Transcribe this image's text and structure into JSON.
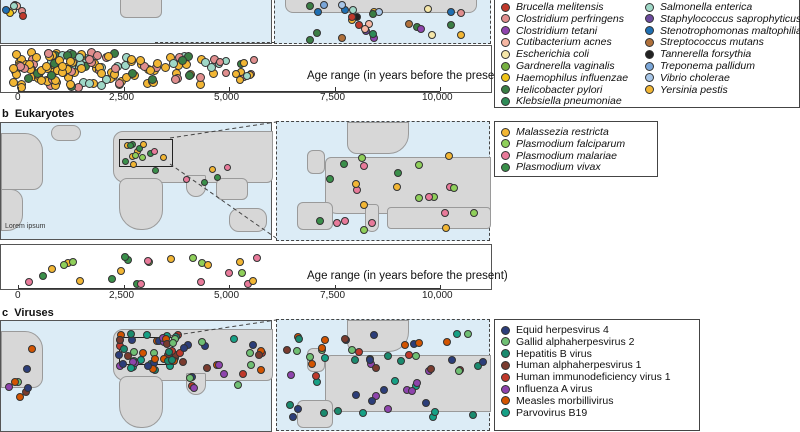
{
  "panels": {
    "a": {
      "age_axis_label": "Age range (in years before the present)",
      "ticks": [
        "0",
        "2,500",
        "5,000",
        "7,500",
        "10,000"
      ],
      "legend_col1": [
        {
          "label": "Brucella melitensis",
          "color": "#c0392b"
        },
        {
          "label": "Clostridium perfringens",
          "color": "#e08e8e"
        },
        {
          "label": "Clostridium tetani",
          "color": "#8e44ad"
        },
        {
          "label": "Cutibacterium acnes",
          "color": "#f7b7a3"
        },
        {
          "label": "Escherichia coli",
          "color": "#f5e6a8"
        },
        {
          "label": "Gardnerella vaginalis",
          "color": "#76b041"
        },
        {
          "label": "Haemophilus influenzae",
          "color": "#f0c419"
        },
        {
          "label": "Helicobacter pylori",
          "color": "#3a7d44"
        },
        {
          "label": "Klebsiella pneumoniae",
          "color": "#2e8b57"
        }
      ],
      "legend_col2": [
        {
          "label": "Salmonella enterica",
          "color": "#9fd8c7"
        },
        {
          "label": "Staphylococcus saprophyticus",
          "color": "#6c4a9e"
        },
        {
          "label": "Stenotrophomonas maltophilia",
          "color": "#1f6fb2"
        },
        {
          "label": "Streptococcus mutans",
          "color": "#b0703a"
        },
        {
          "label": "Tannerella forsythia",
          "color": "#222222"
        },
        {
          "label": "Treponema pallidum",
          "color": "#7aa6d8"
        },
        {
          "label": "Vibrio cholerae",
          "color": "#a7c6e8"
        },
        {
          "label": "Yersinia pestis",
          "color": "#f2b634"
        }
      ]
    },
    "b": {
      "letter": "b",
      "title": "Eukaryotes",
      "map_caption": "Lorem ipsum",
      "age_axis_label": "Age range (in years before the present)",
      "ticks": [
        "0",
        "2,500",
        "5,000",
        "7,500",
        "10,000"
      ],
      "legend": [
        {
          "label": "Malassezia restricta",
          "color": "#f2b634"
        },
        {
          "label": "Plasmodium falciparum",
          "color": "#8fcf5a"
        },
        {
          "label": "Plasmodium malariae",
          "color": "#e87a9a"
        },
        {
          "label": "Plasmodium vivax",
          "color": "#3a8f4a"
        }
      ]
    },
    "c": {
      "letter": "c",
      "title": "Viruses",
      "legend": [
        {
          "label": "Equid herpesvirus 4",
          "color": "#2c3e7a"
        },
        {
          "label": "Gallid alphaherpesvirus 2",
          "color": "#6fbf73"
        },
        {
          "label": "Hepatitis B virus",
          "color": "#1a8a6e"
        },
        {
          "label": "Human alphaherpesvirus 1",
          "color": "#7a3b2e"
        },
        {
          "label": "Human immunodeficiency virus 1",
          "color": "#c0392b"
        },
        {
          "label": "Influenza A virus",
          "color": "#8e44ad"
        },
        {
          "label": "Measles morbillivirus",
          "color": "#d35400"
        },
        {
          "label": "Parvovirus B19",
          "color": "#16a085"
        }
      ]
    }
  }
}
